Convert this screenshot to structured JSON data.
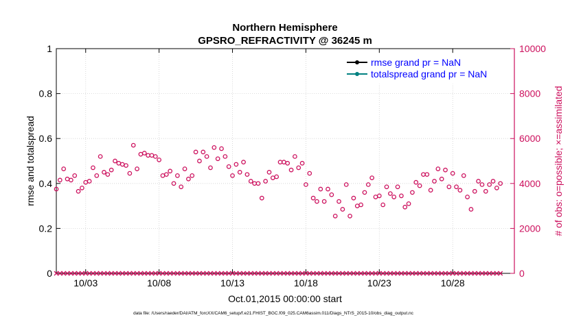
{
  "chart_data": {
    "type": "scatter",
    "title": "Northern Hemisphere",
    "subtitle": "GPSRO_REFRACTIVITY @ 36245 m",
    "xlabel": "Oct.01,2015 00:00:00 start",
    "ylabel_left": "rmse and totalspread",
    "ylabel_right": "# of obs: o=possible; ×=assimilated",
    "footer": "data file: /Users/raeder/DAI/ATM_forcXX/CAM6_setup/f.e21.FHIST_BGC.f09_025.CAM6assim.011/Diags_NTrS_2015-10/obs_diag_output.nc",
    "xlim": [
      1,
      32.2
    ],
    "ylim_left": [
      0,
      1
    ],
    "ylim_right": [
      0,
      10000
    ],
    "left_ticks": [
      "0",
      "0.2",
      "0.4",
      "0.6",
      "0.8",
      "1"
    ],
    "right_ticks": [
      "0",
      "2000",
      "4000",
      "6000",
      "8000",
      "10000"
    ],
    "x_ticks": [
      {
        "day": 3,
        "label": "10/03"
      },
      {
        "day": 8,
        "label": "10/08"
      },
      {
        "day": 13,
        "label": "10/13"
      },
      {
        "day": 18,
        "label": "10/18"
      },
      {
        "day": 23,
        "label": "10/23"
      },
      {
        "day": 28,
        "label": "10/28"
      }
    ],
    "legend": [
      {
        "label": "rmse grand pr = NaN",
        "color": "#000000"
      },
      {
        "label": "totalspread grand pr = NaN",
        "color": "#008080"
      }
    ],
    "legend_position": "top-right",
    "series": [
      {
        "name": "obs possible",
        "marker": "circle",
        "color": "#cc0e5c",
        "x_start": 1.0,
        "x_step": 0.25,
        "values": [
          3750,
          4150,
          4650,
          4200,
          4150,
          4350,
          3650,
          3800,
          4050,
          4100,
          4700,
          4350,
          5200,
          4500,
          4400,
          4600,
          5000,
          4900,
          4850,
          4800,
          4450,
          5700,
          4650,
          5300,
          5350,
          5250,
          5250,
          5200,
          5050,
          4350,
          4400,
          4550,
          4000,
          4350,
          3850,
          4650,
          4200,
          4350,
          5400,
          5000,
          5400,
          5200,
          4700,
          5600,
          5100,
          5550,
          5200,
          4750,
          4350,
          4850,
          4500,
          4950,
          4400,
          4100,
          4000,
          4000,
          3350,
          4100,
          4500,
          4250,
          4300,
          4950,
          4950,
          4900,
          4600,
          5200,
          4700,
          4900,
          3950,
          4450,
          3350,
          3200,
          3750,
          3200,
          3750,
          3500,
          2550,
          3200,
          2850,
          3950,
          2550,
          3350,
          3000,
          3050,
          3600,
          3950,
          4250,
          3400,
          3450,
          3050,
          3850,
          3550,
          3400,
          3850,
          3450,
          2950,
          3100,
          3600,
          4050,
          3900,
          4400,
          4400,
          3700,
          4100,
          4650,
          4200,
          4600,
          3850,
          4450,
          3850,
          3700,
          4350,
          3400,
          2850,
          3650,
          4100,
          3950,
          3650,
          3950,
          4100,
          3800,
          4000
        ]
      },
      {
        "name": "obs assimilated",
        "marker": "x",
        "color": "#cc0e5c",
        "x_start": 1.0,
        "x_step": 0.25,
        "values": [
          0,
          0,
          0,
          0,
          0,
          0,
          0,
          0,
          0,
          0,
          0,
          0,
          0,
          0,
          0,
          0,
          0,
          0,
          0,
          0,
          0,
          0,
          0,
          0,
          0,
          0,
          0,
          0,
          0,
          0,
          0,
          0,
          0,
          0,
          0,
          0,
          0,
          0,
          0,
          0,
          0,
          0,
          0,
          0,
          0,
          0,
          0,
          0,
          0,
          0,
          0,
          0,
          0,
          0,
          0,
          0,
          0,
          0,
          0,
          0,
          0,
          0,
          0,
          0,
          0,
          0,
          0,
          0,
          0,
          0,
          0,
          0,
          0,
          0,
          0,
          0,
          0,
          0,
          0,
          0,
          0,
          0,
          0,
          0,
          0,
          0,
          0,
          0,
          0,
          0,
          0,
          0,
          0,
          0,
          0,
          0,
          0,
          0,
          0,
          0,
          0,
          0,
          0,
          0,
          0,
          0,
          0,
          0,
          0,
          0,
          0,
          0,
          0,
          0,
          0,
          0,
          0,
          0,
          0,
          0,
          0,
          0
        ]
      }
    ],
    "colors": {
      "left_axis": "#000000",
      "right_axis": "#cc0e5c",
      "legend_text": "#0000ff"
    }
  }
}
